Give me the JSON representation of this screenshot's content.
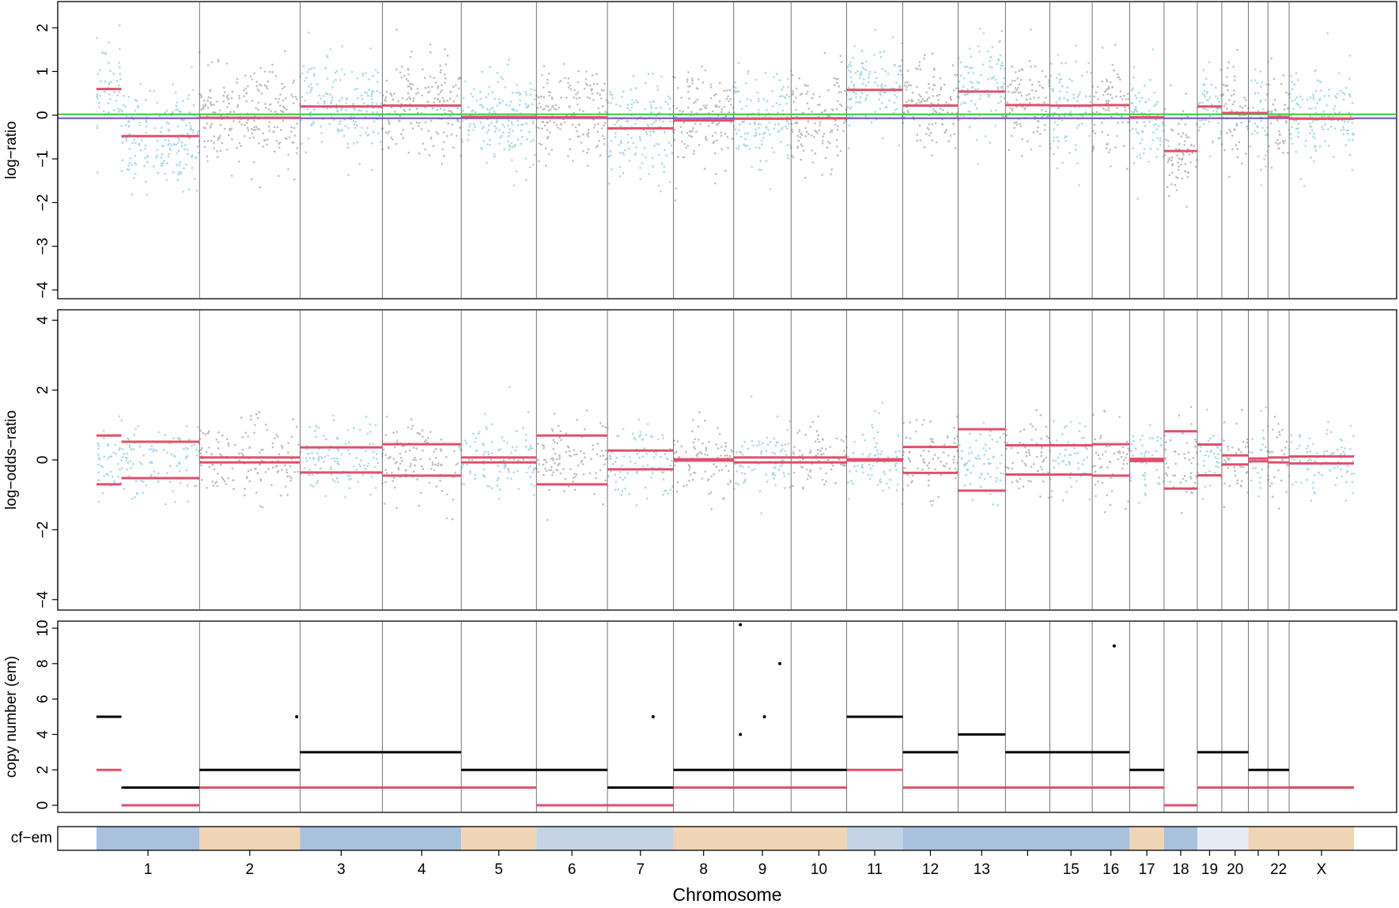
{
  "colors": {
    "seg_line": "#e0506a",
    "cn_line": "#000000",
    "points_a": "#a8d8e6",
    "points_b": "#bdbdbd",
    "ref_green": "#33cc33",
    "ref_purple": "#6a4cc0",
    "cf_low": "#a9c1dc",
    "cf_mid": "#c4d4e6",
    "cf_pale": "#e6ecf6",
    "cf_orange": "#f0d4b6",
    "divider": "#555555"
  },
  "chart_data": {
    "type": "scatter",
    "xlabel": "Chromosome",
    "chromosomes": [
      {
        "label": "1",
        "start": 0,
        "end": 248
      },
      {
        "label": "2",
        "start": 248,
        "end": 490
      },
      {
        "label": "3",
        "start": 490,
        "end": 688
      },
      {
        "label": "4",
        "start": 688,
        "end": 878
      },
      {
        "label": "5",
        "start": 878,
        "end": 1059
      },
      {
        "label": "6",
        "start": 1059,
        "end": 1230
      },
      {
        "label": "7",
        "start": 1230,
        "end": 1389
      },
      {
        "label": "8",
        "start": 1389,
        "end": 1534
      },
      {
        "label": "9",
        "start": 1534,
        "end": 1672
      },
      {
        "label": "10",
        "start": 1672,
        "end": 1806
      },
      {
        "label": "11",
        "start": 1806,
        "end": 1941
      },
      {
        "label": "12",
        "start": 1941,
        "end": 2074
      },
      {
        "label": "13",
        "start": 2074,
        "end": 2188
      },
      {
        "label": "",
        "start": 2188,
        "end": 2295
      },
      {
        "label": "15",
        "start": 2295,
        "end": 2397
      },
      {
        "label": "16",
        "start": 2397,
        "end": 2487
      },
      {
        "label": "17",
        "start": 2487,
        "end": 2570
      },
      {
        "label": "18",
        "start": 2570,
        "end": 2650
      },
      {
        "label": "19",
        "start": 2650,
        "end": 2709
      },
      {
        "label": "20",
        "start": 2709,
        "end": 2773
      },
      {
        "label": "",
        "start": 2773,
        "end": 2820
      },
      {
        "label": "22",
        "start": 2820,
        "end": 2871
      },
      {
        "label": "X",
        "start": 2871,
        "end": 3027
      }
    ],
    "panels": [
      {
        "ylabel": "log−ratio",
        "ylim": [
          -4.2,
          2.6
        ],
        "yticks": [
          -4,
          -3,
          -2,
          -1,
          0,
          1,
          2
        ],
        "ref_lines": [
          {
            "y": 0.02,
            "color": "#33cc33"
          },
          {
            "y": -0.07,
            "color": "#6a4cc0"
          }
        ],
        "segments": [
          {
            "x0": 0,
            "x1": 60,
            "y": 0.6
          },
          {
            "x0": 60,
            "x1": 248,
            "y": -0.48
          },
          {
            "x0": 248,
            "x1": 490,
            "y": -0.06
          },
          {
            "x0": 490,
            "x1": 688,
            "y": 0.2
          },
          {
            "x0": 688,
            "x1": 878,
            "y": 0.22
          },
          {
            "x0": 878,
            "x1": 1059,
            "y": -0.04
          },
          {
            "x0": 1059,
            "x1": 1230,
            "y": -0.05
          },
          {
            "x0": 1230,
            "x1": 1389,
            "y": -0.3
          },
          {
            "x0": 1389,
            "x1": 1534,
            "y": -0.12
          },
          {
            "x0": 1534,
            "x1": 1672,
            "y": -0.08
          },
          {
            "x0": 1672,
            "x1": 1806,
            "y": -0.07
          },
          {
            "x0": 1806,
            "x1": 1941,
            "y": 0.58
          },
          {
            "x0": 1941,
            "x1": 2074,
            "y": 0.22
          },
          {
            "x0": 2074,
            "x1": 2188,
            "y": 0.54
          },
          {
            "x0": 2188,
            "x1": 2295,
            "y": 0.23
          },
          {
            "x0": 2295,
            "x1": 2397,
            "y": 0.22
          },
          {
            "x0": 2397,
            "x1": 2487,
            "y": 0.23
          },
          {
            "x0": 2487,
            "x1": 2570,
            "y": -0.05
          },
          {
            "x0": 2570,
            "x1": 2650,
            "y": -0.82
          },
          {
            "x0": 2650,
            "x1": 2709,
            "y": 0.2
          },
          {
            "x0": 2709,
            "x1": 2773,
            "y": 0.05
          },
          {
            "x0": 2773,
            "x1": 2820,
            "y": 0.05
          },
          {
            "x0": 2820,
            "x1": 2871,
            "y": -0.04
          },
          {
            "x0": 2871,
            "x1": 3027,
            "y": -0.08
          }
        ],
        "points": {
          "n_per_chr": 190,
          "spread": 0.55
        }
      },
      {
        "ylabel": "log−odds−ratio",
        "ylim": [
          -4.3,
          4.3
        ],
        "yticks": [
          -4,
          -2,
          0,
          2,
          4
        ],
        "segments": [
          {
            "x0": 0,
            "x1": 60,
            "y": 0.7
          },
          {
            "x0": 0,
            "x1": 60,
            "y": -0.7
          },
          {
            "x0": 60,
            "x1": 248,
            "y": 0.52
          },
          {
            "x0": 60,
            "x1": 248,
            "y": -0.52
          },
          {
            "x0": 248,
            "x1": 490,
            "y": 0.07
          },
          {
            "x0": 248,
            "x1": 490,
            "y": -0.07
          },
          {
            "x0": 490,
            "x1": 688,
            "y": 0.36
          },
          {
            "x0": 490,
            "x1": 688,
            "y": -0.36
          },
          {
            "x0": 688,
            "x1": 878,
            "y": 0.45
          },
          {
            "x0": 688,
            "x1": 878,
            "y": -0.45
          },
          {
            "x0": 878,
            "x1": 1059,
            "y": 0.07
          },
          {
            "x0": 878,
            "x1": 1059,
            "y": -0.07
          },
          {
            "x0": 1059,
            "x1": 1230,
            "y": 0.7
          },
          {
            "x0": 1059,
            "x1": 1230,
            "y": -0.7
          },
          {
            "x0": 1230,
            "x1": 1389,
            "y": 0.27
          },
          {
            "x0": 1230,
            "x1": 1389,
            "y": -0.27
          },
          {
            "x0": 1389,
            "x1": 1534,
            "y": 0.02
          },
          {
            "x0": 1389,
            "x1": 1534,
            "y": -0.02
          },
          {
            "x0": 1534,
            "x1": 1672,
            "y": 0.07
          },
          {
            "x0": 1534,
            "x1": 1672,
            "y": -0.07
          },
          {
            "x0": 1672,
            "x1": 1806,
            "y": 0.07
          },
          {
            "x0": 1672,
            "x1": 1806,
            "y": -0.07
          },
          {
            "x0": 1806,
            "x1": 1941,
            "y": 0.02
          },
          {
            "x0": 1806,
            "x1": 1941,
            "y": -0.02
          },
          {
            "x0": 1941,
            "x1": 2074,
            "y": 0.37
          },
          {
            "x0": 1941,
            "x1": 2074,
            "y": -0.37
          },
          {
            "x0": 2074,
            "x1": 2188,
            "y": 0.88
          },
          {
            "x0": 2074,
            "x1": 2188,
            "y": -0.88
          },
          {
            "x0": 2188,
            "x1": 2295,
            "y": 0.42
          },
          {
            "x0": 2188,
            "x1": 2295,
            "y": -0.42
          },
          {
            "x0": 2295,
            "x1": 2397,
            "y": 0.42
          },
          {
            "x0": 2295,
            "x1": 2397,
            "y": -0.42
          },
          {
            "x0": 2397,
            "x1": 2487,
            "y": 0.45
          },
          {
            "x0": 2397,
            "x1": 2487,
            "y": -0.45
          },
          {
            "x0": 2487,
            "x1": 2570,
            "y": 0.03
          },
          {
            "x0": 2487,
            "x1": 2570,
            "y": -0.03
          },
          {
            "x0": 2570,
            "x1": 2650,
            "y": 0.82
          },
          {
            "x0": 2570,
            "x1": 2650,
            "y": -0.82
          },
          {
            "x0": 2650,
            "x1": 2709,
            "y": 0.44
          },
          {
            "x0": 2650,
            "x1": 2709,
            "y": -0.44
          },
          {
            "x0": 2709,
            "x1": 2773,
            "y": 0.13
          },
          {
            "x0": 2709,
            "x1": 2773,
            "y": -0.13
          },
          {
            "x0": 2773,
            "x1": 2820,
            "y": 0.04
          },
          {
            "x0": 2773,
            "x1": 2820,
            "y": -0.04
          },
          {
            "x0": 2820,
            "x1": 2871,
            "y": 0.07
          },
          {
            "x0": 2820,
            "x1": 2871,
            "y": -0.07
          },
          {
            "x0": 2871,
            "x1": 3027,
            "y": 0.1
          },
          {
            "x0": 2871,
            "x1": 3027,
            "y": -0.1
          }
        ],
        "points": {
          "n_per_chr": 120,
          "spread": 0.55
        }
      },
      {
        "ylabel": "copy number (em)",
        "ylim": [
          -0.4,
          10.4
        ],
        "yticks": [
          0,
          2,
          4,
          6,
          8,
          10
        ],
        "total_cn": [
          {
            "x0": 0,
            "x1": 60,
            "y": 5
          },
          {
            "x0": 60,
            "x1": 248,
            "y": 1
          },
          {
            "x0": 248,
            "x1": 490,
            "y": 2
          },
          {
            "x0": 490,
            "x1": 688,
            "y": 3
          },
          {
            "x0": 688,
            "x1": 878,
            "y": 3
          },
          {
            "x0": 878,
            "x1": 1059,
            "y": 2
          },
          {
            "x0": 1059,
            "x1": 1230,
            "y": 2
          },
          {
            "x0": 1230,
            "x1": 1389,
            "y": 1
          },
          {
            "x0": 1389,
            "x1": 1534,
            "y": 2
          },
          {
            "x0": 1534,
            "x1": 1672,
            "y": 2
          },
          {
            "x0": 1672,
            "x1": 1806,
            "y": 2
          },
          {
            "x0": 1806,
            "x1": 1941,
            "y": 5
          },
          {
            "x0": 1941,
            "x1": 2074,
            "y": 3
          },
          {
            "x0": 2074,
            "x1": 2188,
            "y": 4
          },
          {
            "x0": 2188,
            "x1": 2295,
            "y": 3
          },
          {
            "x0": 2295,
            "x1": 2397,
            "y": 3
          },
          {
            "x0": 2397,
            "x1": 2487,
            "y": 3
          },
          {
            "x0": 2487,
            "x1": 2570,
            "y": 2
          },
          {
            "x0": 2570,
            "x1": 2650,
            "y": 0
          },
          {
            "x0": 2650,
            "x1": 2709,
            "y": 3
          },
          {
            "x0": 2709,
            "x1": 2773,
            "y": 3
          },
          {
            "x0": 2773,
            "x1": 2820,
            "y": 2
          },
          {
            "x0": 2820,
            "x1": 2871,
            "y": 2
          },
          {
            "x0": 2871,
            "x1": 3027,
            "y": 1
          }
        ],
        "minor_cn": [
          {
            "x0": 0,
            "x1": 60,
            "y": 2
          },
          {
            "x0": 60,
            "x1": 248,
            "y": 0
          },
          {
            "x0": 248,
            "x1": 490,
            "y": 1
          },
          {
            "x0": 490,
            "x1": 688,
            "y": 1
          },
          {
            "x0": 688,
            "x1": 878,
            "y": 1
          },
          {
            "x0": 878,
            "x1": 1059,
            "y": 1
          },
          {
            "x0": 1059,
            "x1": 1230,
            "y": 0
          },
          {
            "x0": 1230,
            "x1": 1389,
            "y": 0
          },
          {
            "x0": 1389,
            "x1": 1534,
            "y": 1
          },
          {
            "x0": 1534,
            "x1": 1672,
            "y": 1
          },
          {
            "x0": 1672,
            "x1": 1806,
            "y": 1
          },
          {
            "x0": 1806,
            "x1": 1941,
            "y": 2
          },
          {
            "x0": 1941,
            "x1": 2074,
            "y": 1
          },
          {
            "x0": 2074,
            "x1": 2188,
            "y": 1
          },
          {
            "x0": 2188,
            "x1": 2295,
            "y": 1
          },
          {
            "x0": 2295,
            "x1": 2397,
            "y": 1
          },
          {
            "x0": 2397,
            "x1": 2487,
            "y": 1
          },
          {
            "x0": 2487,
            "x1": 2570,
            "y": 1
          },
          {
            "x0": 2570,
            "x1": 2650,
            "y": 0
          },
          {
            "x0": 2650,
            "x1": 2709,
            "y": 1
          },
          {
            "x0": 2709,
            "x1": 2773,
            "y": 1
          },
          {
            "x0": 2773,
            "x1": 2820,
            "y": 1
          },
          {
            "x0": 2820,
            "x1": 2871,
            "y": 1
          },
          {
            "x0": 2871,
            "x1": 3027,
            "y": 1
          }
        ],
        "outliers": [
          {
            "x": 1550,
            "y": 10.2
          },
          {
            "x": 1550,
            "y": 4
          },
          {
            "x": 1608,
            "y": 5
          },
          {
            "x": 1645,
            "y": 8
          },
          {
            "x": 2450,
            "y": 9
          },
          {
            "x": 482,
            "y": 5
          },
          {
            "x": 1340,
            "y": 5
          }
        ]
      }
    ],
    "cf_band": {
      "label": "cf−em",
      "cells": [
        {
          "x0": 0,
          "x1": 248,
          "tone": "cf_low"
        },
        {
          "x0": 248,
          "x1": 490,
          "tone": "cf_orange"
        },
        {
          "x0": 490,
          "x1": 878,
          "tone": "cf_low"
        },
        {
          "x0": 878,
          "x1": 1059,
          "tone": "cf_orange"
        },
        {
          "x0": 1059,
          "x1": 1389,
          "tone": "cf_mid"
        },
        {
          "x0": 1389,
          "x1": 1806,
          "tone": "cf_orange"
        },
        {
          "x0": 1806,
          "x1": 1941,
          "tone": "cf_mid"
        },
        {
          "x0": 1941,
          "x1": 2487,
          "tone": "cf_low"
        },
        {
          "x0": 2487,
          "x1": 2570,
          "tone": "cf_orange"
        },
        {
          "x0": 2570,
          "x1": 2650,
          "tone": "cf_low"
        },
        {
          "x0": 2650,
          "x1": 2773,
          "tone": "cf_pale"
        },
        {
          "x0": 2773,
          "x1": 3027,
          "tone": "cf_orange"
        }
      ]
    }
  }
}
